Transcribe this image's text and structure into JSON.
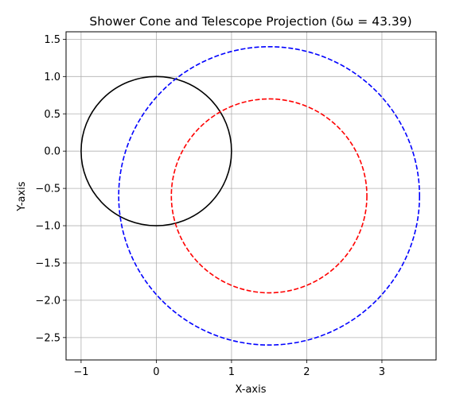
{
  "chart_data": {
    "type": "line",
    "title": "Shower Cone and Telescope Projection (δω = 43.39)",
    "xlabel": "X-axis",
    "ylabel": "Y-axis",
    "xlim": [
      -1.2,
      3.72
    ],
    "ylim": [
      -2.8,
      1.6
    ],
    "grid": true,
    "x_ticks": [
      -1,
      0,
      1,
      2,
      3
    ],
    "x_tick_labels": [
      "−1",
      "0",
      "1",
      "2",
      "3"
    ],
    "y_ticks": [
      1.5,
      1.0,
      0.5,
      0.0,
      -0.5,
      -1.0,
      -1.5,
      -2.0,
      -2.5
    ],
    "y_tick_labels": [
      "1.5",
      "1.0",
      "0.5",
      "0.0",
      "−0.5",
      "−1.0",
      "−1.5",
      "−2.0",
      "−2.5"
    ],
    "series": [
      {
        "shape": "circle",
        "center": [
          0,
          0
        ],
        "radius": 1.0,
        "color": "#000000",
        "dashed": false
      },
      {
        "shape": "circle",
        "center": [
          1.5,
          -0.6
        ],
        "radius": 1.3,
        "color": "#ff0000",
        "dashed": true
      },
      {
        "shape": "circle",
        "center": [
          1.5,
          -0.6
        ],
        "radius": 2.0,
        "color": "#0000ff",
        "dashed": true
      }
    ]
  }
}
